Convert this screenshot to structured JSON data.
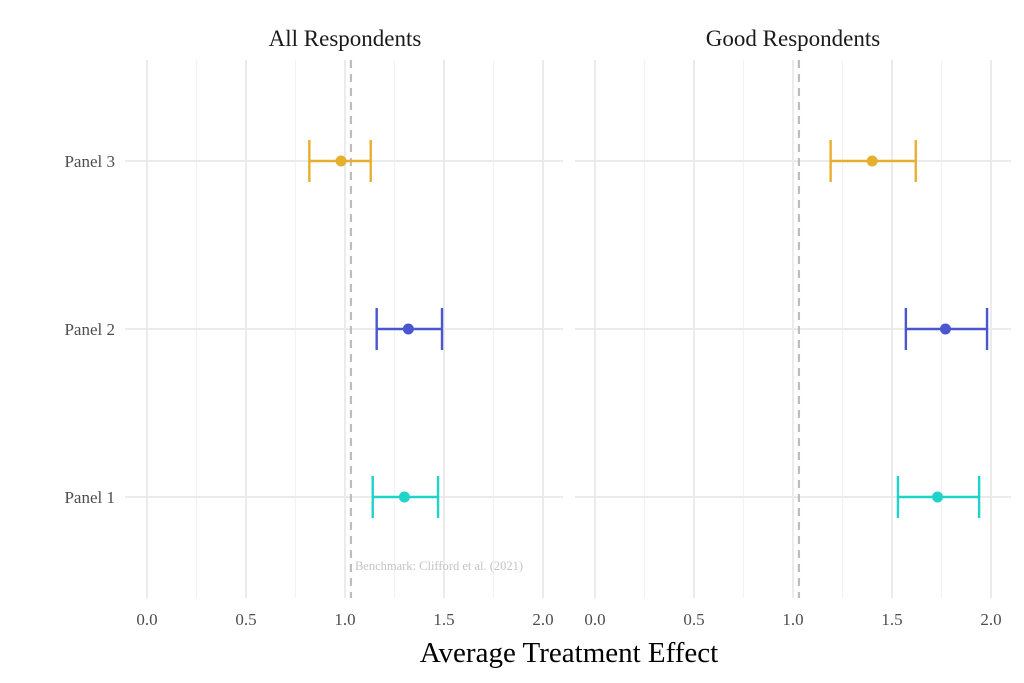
{
  "chart_data": {
    "type": "errorbar",
    "title": "",
    "xlabel": "Average Treatment Effect",
    "ylabel": "",
    "xlim": [
      -0.1,
      2.1
    ],
    "xticks": [
      0.0,
      0.5,
      1.0,
      1.5,
      2.0
    ],
    "xtick_labels": [
      "0.0",
      "0.5",
      "1.0",
      "1.5",
      "2.0"
    ],
    "categories": [
      "Panel 3",
      "Panel 2",
      "Panel 1"
    ],
    "grid": true,
    "legend": "none",
    "colors": {
      "Panel 1": "#1fd3c9",
      "Panel 2": "#4a56cf",
      "Panel 3": "#e6b02f",
      "reference": "#bdbdbd",
      "grid": "#ebebeb"
    },
    "reference_line": {
      "x": 1.03,
      "style": "dashed",
      "label": "Benchmark: Clifford et al. (2021)",
      "label_facet": "All Respondents"
    },
    "facets": [
      {
        "title": "All Respondents",
        "series": [
          {
            "name": "Panel 3",
            "estimate": 0.98,
            "ci_low": 0.82,
            "ci_high": 1.13
          },
          {
            "name": "Panel 2",
            "estimate": 1.32,
            "ci_low": 1.16,
            "ci_high": 1.49
          },
          {
            "name": "Panel 1",
            "estimate": 1.3,
            "ci_low": 1.14,
            "ci_high": 1.47
          }
        ]
      },
      {
        "title": "Good Respondents",
        "series": [
          {
            "name": "Panel 3",
            "estimate": 1.4,
            "ci_low": 1.19,
            "ci_high": 1.62
          },
          {
            "name": "Panel 2",
            "estimate": 1.77,
            "ci_low": 1.57,
            "ci_high": 1.98
          },
          {
            "name": "Panel 1",
            "estimate": 1.73,
            "ci_low": 1.53,
            "ci_high": 1.94
          }
        ]
      }
    ]
  }
}
